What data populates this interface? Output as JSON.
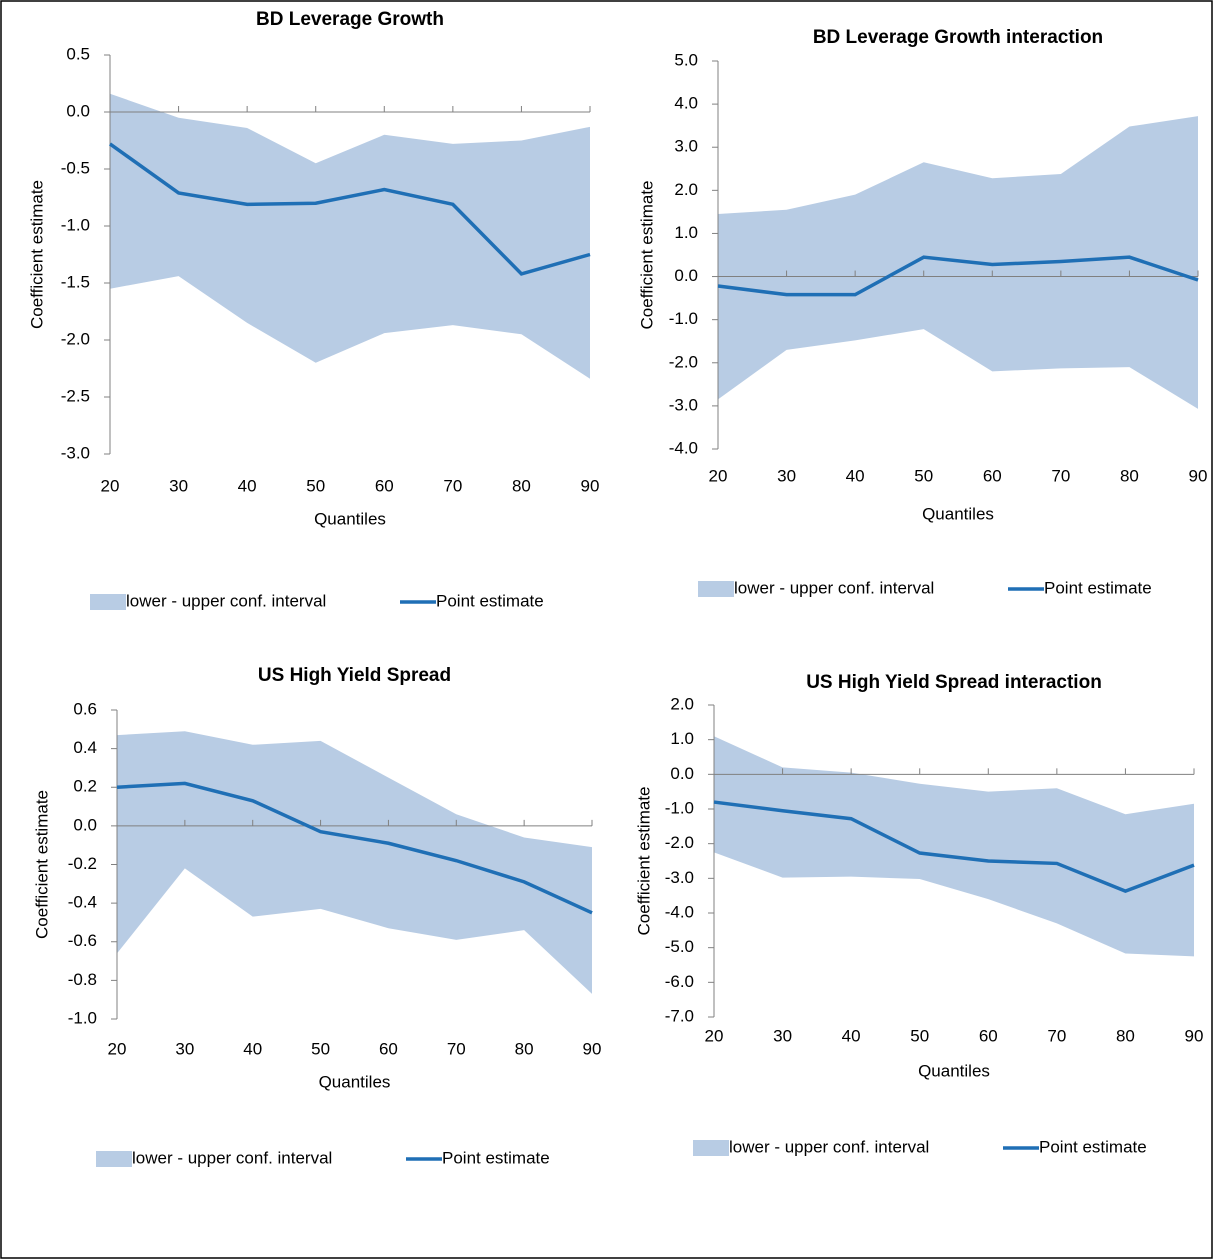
{
  "chart_data": [
    {
      "type": "line",
      "title": "BD Leverage Growth",
      "x_label": "Quantiles",
      "y_label": "Coefficient estimate",
      "x": [
        20,
        30,
        40,
        50,
        60,
        70,
        80,
        90
      ],
      "xlim": [
        20,
        90
      ],
      "xticks": [
        20,
        30,
        40,
        50,
        60,
        70,
        80,
        90
      ],
      "ylim": [
        -3,
        0.5
      ],
      "yticks": [
        0.5,
        {
          "value": 0,
          "label": "0.0"
        },
        -0.5,
        {
          "value": -1,
          "label": "-1.0"
        },
        -1.5,
        {
          "value": -2,
          "label": "-2.0"
        },
        -2.5,
        {
          "value": -3,
          "label": "-3.0"
        }
      ],
      "band": {
        "name": "lower - upper conf. interval",
        "color": "#b8cce4",
        "lower": [
          -1.55,
          -1.44,
          -1.85,
          -2.2,
          -1.94,
          -1.87,
          -1.95,
          -2.34
        ],
        "upper": [
          0.16,
          -0.05,
          -0.14,
          -0.45,
          -0.2,
          -0.28,
          -0.25,
          -0.13
        ]
      },
      "series": [
        {
          "name": "Point estimate",
          "color": "#1f6fb5",
          "values": [
            -0.28,
            -0.71,
            -0.81,
            -0.8,
            -0.68,
            -0.81,
            -1.42,
            -1.25
          ]
        }
      ]
    },
    {
      "type": "line",
      "title": "BD Leverage Growth interaction",
      "x_label": "Quantiles",
      "y_label": "Coefficient estimate",
      "x": [
        20,
        30,
        40,
        50,
        60,
        70,
        80,
        90
      ],
      "xlim": [
        20,
        90
      ],
      "xticks": [
        20,
        30,
        40,
        50,
        60,
        70,
        80,
        90
      ],
      "ylim": [
        -4,
        5
      ],
      "yticks": [
        {
          "value": 5,
          "label": "5.0"
        },
        {
          "value": 4,
          "label": "4.0"
        },
        {
          "value": 3,
          "label": "3.0"
        },
        {
          "value": 2,
          "label": "2.0"
        },
        {
          "value": 1,
          "label": "1.0"
        },
        {
          "value": 0,
          "label": "0.0"
        },
        {
          "value": -1,
          "label": "-1.0"
        },
        {
          "value": -2,
          "label": "-2.0"
        },
        {
          "value": -3,
          "label": "-3.0"
        },
        {
          "value": -4,
          "label": "-4.0"
        }
      ],
      "band": {
        "name": "lower - upper conf. interval",
        "color": "#b8cce4",
        "lower": [
          -2.85,
          -1.7,
          -1.48,
          -1.22,
          -2.2,
          -2.13,
          -2.1,
          -3.07
        ],
        "upper": [
          1.45,
          1.55,
          1.9,
          2.65,
          2.28,
          2.38,
          3.48,
          3.72
        ]
      },
      "series": [
        {
          "name": "Point estimate",
          "color": "#1f6fb5",
          "values": [
            -0.22,
            -0.42,
            -0.42,
            0.45,
            0.28,
            0.35,
            0.45,
            -0.08
          ]
        }
      ]
    },
    {
      "type": "line",
      "title": "US High Yield Spread",
      "x_label": "Quantiles",
      "y_label": "Coefficient estimate",
      "x": [
        20,
        30,
        40,
        50,
        60,
        70,
        80,
        90
      ],
      "xlim": [
        20,
        90
      ],
      "xticks": [
        20,
        30,
        40,
        50,
        60,
        70,
        80,
        90
      ],
      "ylim": [
        -1,
        0.6
      ],
      "yticks": [
        0.6,
        0.4,
        0.2,
        {
          "value": 0,
          "label": "0.0"
        },
        -0.2,
        -0.4,
        -0.6,
        -0.8,
        {
          "value": -1,
          "label": "-1.0"
        }
      ],
      "band": {
        "name": "lower - upper conf. interval",
        "color": "#b8cce4",
        "lower": [
          -0.66,
          -0.22,
          -0.47,
          -0.43,
          -0.53,
          -0.59,
          -0.54,
          -0.87
        ],
        "upper": [
          0.47,
          0.49,
          0.42,
          0.44,
          0.25,
          0.06,
          -0.06,
          -0.11
        ]
      },
      "series": [
        {
          "name": "Point estimate",
          "color": "#1f6fb5",
          "values": [
            0.2,
            0.22,
            0.13,
            -0.03,
            -0.09,
            -0.18,
            -0.29,
            -0.45
          ]
        }
      ]
    },
    {
      "type": "line",
      "title": "US High Yield  Spread interaction",
      "x_label": "Quantiles",
      "y_label": "Coefficient estimate",
      "x": [
        20,
        30,
        40,
        50,
        60,
        70,
        80,
        90
      ],
      "xlim": [
        20,
        90
      ],
      "xticks": [
        20,
        30,
        40,
        50,
        60,
        70,
        80,
        90
      ],
      "ylim": [
        -7,
        2
      ],
      "yticks": [
        {
          "value": 2,
          "label": "2.0"
        },
        {
          "value": 1,
          "label": "1.0"
        },
        {
          "value": 0,
          "label": "0.0"
        },
        {
          "value": -1,
          "label": "-1.0"
        },
        {
          "value": -2,
          "label": "-2.0"
        },
        {
          "value": -3,
          "label": "-3.0"
        },
        {
          "value": -4,
          "label": "-4.0"
        },
        {
          "value": -5,
          "label": "-5.0"
        },
        {
          "value": -6,
          "label": "-6.0"
        },
        {
          "value": -7,
          "label": "-7.0"
        }
      ],
      "band": {
        "name": "lower - upper conf. interval",
        "color": "#b8cce4",
        "lower": [
          -2.25,
          -2.98,
          -2.95,
          -3.02,
          -3.6,
          -4.3,
          -5.17,
          -5.25
        ],
        "upper": [
          1.1,
          0.2,
          0.05,
          -0.27,
          -0.5,
          -0.4,
          -1.15,
          -0.85
        ]
      },
      "series": [
        {
          "name": "Point estimate",
          "color": "#1f6fb5",
          "values": [
            -0.8,
            -1.05,
            -1.28,
            -2.27,
            -2.5,
            -2.57,
            -3.37,
            -2.62
          ]
        }
      ]
    }
  ]
}
